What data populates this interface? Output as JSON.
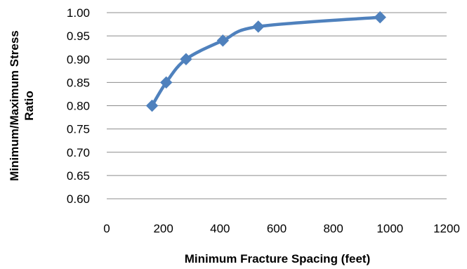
{
  "chart_data": {
    "type": "line",
    "xlabel": "Minimum Fracture Spacing (feet)",
    "ylabel_lines": [
      "Minimum/Maximum Stress",
      "Ratio"
    ],
    "xlim": [
      0,
      1200
    ],
    "ylim": [
      0.6,
      1.0
    ],
    "x_ticks": [
      "0",
      "200",
      "400",
      "600",
      "800",
      "1000",
      "1200"
    ],
    "y_ticks": [
      "0.60",
      "0.65",
      "0.70",
      "0.75",
      "0.80",
      "0.85",
      "0.90",
      "0.95",
      "1.00"
    ],
    "grid": "horizontal",
    "legend": "none",
    "marker": "diamond",
    "smooth": true,
    "series": [
      {
        "color": "#4F81BD",
        "points": [
          {
            "x": 160,
            "y": 0.8
          },
          {
            "x": 210,
            "y": 0.85
          },
          {
            "x": 280,
            "y": 0.9
          },
          {
            "x": 410,
            "y": 0.94
          },
          {
            "x": 535,
            "y": 0.97
          },
          {
            "x": 965,
            "y": 0.99
          }
        ]
      }
    ]
  }
}
